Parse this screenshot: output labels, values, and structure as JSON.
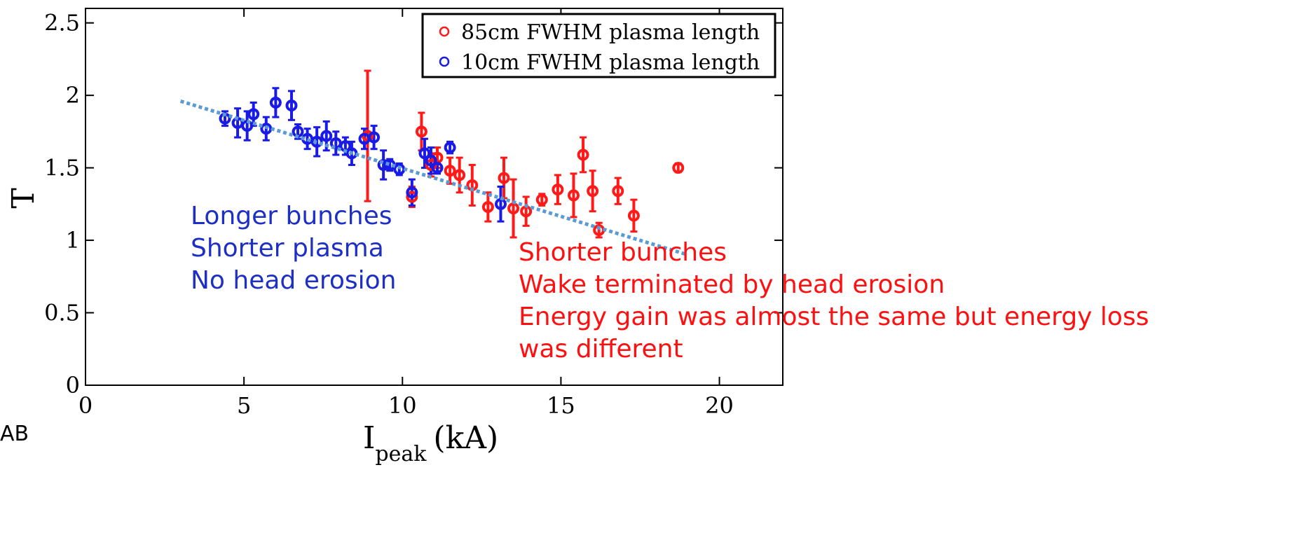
{
  "chart_data": {
    "type": "scatter",
    "title": "",
    "xlabel_main": "I",
    "xlabel_sub": "peak",
    "xlabel_unit": "(kA)",
    "ylabel": "T",
    "xlim": [
      0,
      22
    ],
    "ylim": [
      0,
      2.6
    ],
    "xticks": [
      "0",
      "5",
      "10",
      "15",
      "20"
    ],
    "yticks": [
      "0",
      "0.5",
      "1",
      "1.5",
      "2",
      "2.5"
    ],
    "grid": false,
    "legend_position": "top-right",
    "series": [
      {
        "name": "85cm FWHM plasma length",
        "color": "#ff1a1a",
        "points": [
          [
            8.9,
            1.72,
            0.45
          ],
          [
            10.3,
            1.3,
            0.07
          ],
          [
            10.6,
            1.75,
            0.13
          ],
          [
            10.9,
            1.52,
            0.08
          ],
          [
            11.1,
            1.57,
            0.07
          ],
          [
            11.5,
            1.48,
            0.09
          ],
          [
            11.8,
            1.45,
            0.12
          ],
          [
            12.2,
            1.38,
            0.14
          ],
          [
            12.7,
            1.23,
            0.1
          ],
          [
            13.2,
            1.43,
            0.14
          ],
          [
            13.5,
            1.22,
            0.2
          ],
          [
            13.9,
            1.2,
            0.1
          ],
          [
            14.4,
            1.28,
            0.04
          ],
          [
            14.9,
            1.35,
            0.1
          ],
          [
            15.4,
            1.31,
            0.15
          ],
          [
            15.7,
            1.59,
            0.12
          ],
          [
            16.0,
            1.34,
            0.14
          ],
          [
            16.2,
            1.07,
            0.05
          ],
          [
            16.8,
            1.34,
            0.09
          ],
          [
            17.3,
            1.17,
            0.11
          ],
          [
            18.7,
            1.5,
            0.03
          ]
        ]
      },
      {
        "name": "10cm FWHM plasma length",
        "color": "#1a1ae6",
        "points": [
          [
            4.4,
            1.84,
            0.05
          ],
          [
            4.8,
            1.81,
            0.1
          ],
          [
            5.1,
            1.79,
            0.1
          ],
          [
            5.3,
            1.87,
            0.08
          ],
          [
            5.7,
            1.77,
            0.08
          ],
          [
            6.0,
            1.95,
            0.1
          ],
          [
            6.5,
            1.93,
            0.1
          ],
          [
            6.7,
            1.75,
            0.05
          ],
          [
            7.0,
            1.7,
            0.07
          ],
          [
            7.3,
            1.68,
            0.1
          ],
          [
            7.6,
            1.72,
            0.1
          ],
          [
            7.9,
            1.67,
            0.08
          ],
          [
            8.2,
            1.65,
            0.06
          ],
          [
            8.4,
            1.6,
            0.08
          ],
          [
            8.8,
            1.7,
            0.07
          ],
          [
            9.1,
            1.71,
            0.08
          ],
          [
            9.4,
            1.52,
            0.1
          ],
          [
            9.6,
            1.52,
            0.04
          ],
          [
            9.9,
            1.49,
            0.04
          ],
          [
            10.3,
            1.33,
            0.09
          ],
          [
            10.7,
            1.6,
            0.1
          ],
          [
            10.9,
            1.55,
            0.09
          ],
          [
            11.1,
            1.5,
            0.04
          ],
          [
            11.5,
            1.64,
            0.04
          ],
          [
            13.1,
            1.25,
            0.12
          ]
        ]
      }
    ],
    "trendline": {
      "style": "dotted",
      "color": "#5b9bd5",
      "from": [
        3.0,
        1.96
      ],
      "to": [
        19.0,
        0.9
      ]
    }
  },
  "annotations": {
    "left": [
      "Longer bunches",
      "Shorter plasma",
      "No head erosion"
    ],
    "right": [
      "Shorter bunches",
      "Wake terminated by head erosion",
      "Energy gain was  almost the same but energy loss",
      "was different"
    ]
  },
  "stray_text": "AB"
}
